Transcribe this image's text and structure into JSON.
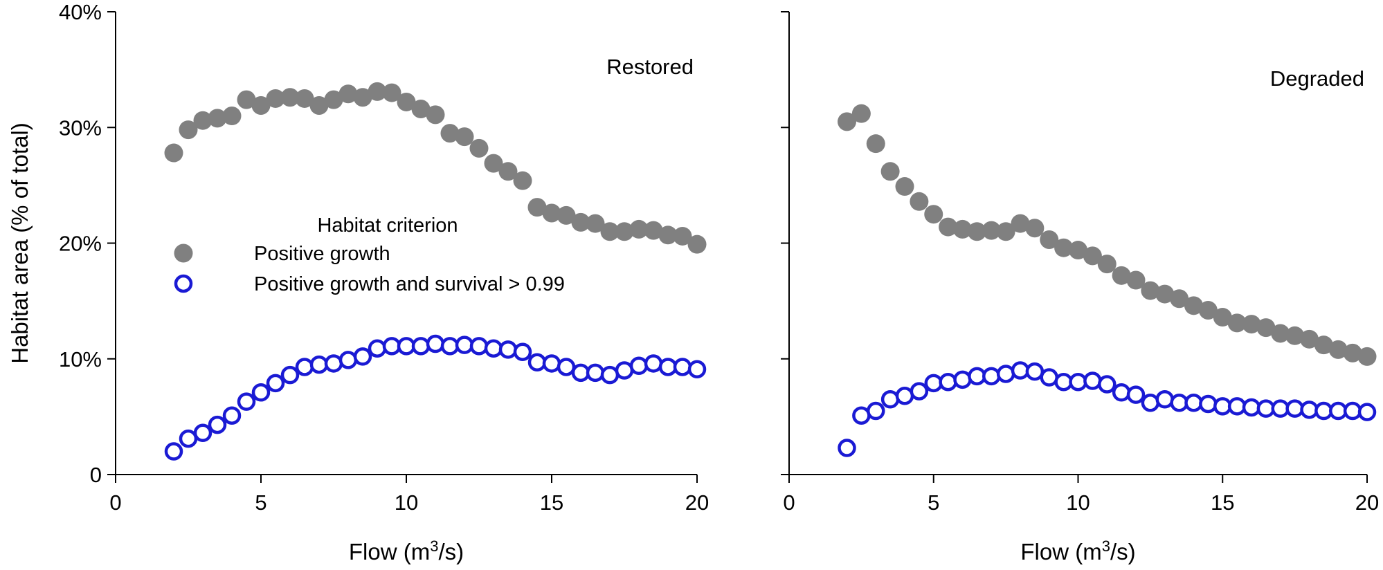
{
  "chart_data": [
    {
      "type": "scatter",
      "panel_label": "Restored",
      "xlabel_prefix": "Flow (m",
      "xlabel_sup": "3",
      "xlabel_suffix": "/s)",
      "ylabel": "Habitat area (% of total)",
      "xlim": [
        0,
        20
      ],
      "ylim": [
        0,
        40
      ],
      "x_ticks": [
        0,
        5,
        10,
        15,
        20
      ],
      "x_tick_labels": [
        "0",
        "5",
        "10",
        "15",
        "20"
      ],
      "y_ticks": [
        0,
        10,
        20,
        30,
        40
      ],
      "y_tick_labels": [
        "0",
        "10%",
        "20%",
        "30%",
        "40%"
      ],
      "legend": {
        "title": "Habitat criterion",
        "entries": [
          "Positive growth",
          "Positive growth and survival > 0.99"
        ]
      },
      "series": [
        {
          "name": "Positive growth",
          "marker": "filled-circle",
          "color": "#808080",
          "x": [
            2,
            2.5,
            3,
            3.5,
            4,
            4.5,
            5,
            5.5,
            6,
            6.5,
            7,
            7.5,
            8,
            8.5,
            9,
            9.5,
            10,
            10.5,
            11,
            11.5,
            12,
            12.5,
            13,
            13.5,
            14,
            14.5,
            15,
            15.5,
            16,
            16.5,
            17,
            17.5,
            18,
            18.5,
            19,
            19.5,
            20
          ],
          "y": [
            27.8,
            29.8,
            30.6,
            30.8,
            31.0,
            32.4,
            31.9,
            32.5,
            32.6,
            32.5,
            31.9,
            32.4,
            32.9,
            32.6,
            33.1,
            33.0,
            32.2,
            31.6,
            31.1,
            29.5,
            29.2,
            28.2,
            26.9,
            26.2,
            25.4,
            23.1,
            22.6,
            22.4,
            21.8,
            21.7,
            21.0,
            21.0,
            21.2,
            21.1,
            20.7,
            20.6,
            19.9
          ]
        },
        {
          "name": "Positive growth and survival > 0.99",
          "marker": "open-circle",
          "color": "#1a1ad4",
          "x": [
            2,
            2.5,
            3,
            3.5,
            4,
            4.5,
            5,
            5.5,
            6,
            6.5,
            7,
            7.5,
            8,
            8.5,
            9,
            9.5,
            10,
            10.5,
            11,
            11.5,
            12,
            12.5,
            13,
            13.5,
            14,
            14.5,
            15,
            15.5,
            16,
            16.5,
            17,
            17.5,
            18,
            18.5,
            19,
            19.5,
            20
          ],
          "y": [
            2.0,
            3.1,
            3.6,
            4.3,
            5.1,
            6.3,
            7.1,
            7.9,
            8.6,
            9.3,
            9.5,
            9.6,
            9.9,
            10.2,
            10.9,
            11.1,
            11.1,
            11.1,
            11.3,
            11.1,
            11.2,
            11.1,
            10.9,
            10.8,
            10.6,
            9.7,
            9.6,
            9.3,
            8.8,
            8.8,
            8.6,
            9.0,
            9.4,
            9.6,
            9.3,
            9.3,
            9.1
          ]
        }
      ]
    },
    {
      "type": "scatter",
      "panel_label": "Degraded",
      "xlabel_prefix": "Flow (m",
      "xlabel_sup": "3",
      "xlabel_suffix": "/s)",
      "ylabel": "",
      "xlim": [
        0,
        20
      ],
      "ylim": [
        0,
        40
      ],
      "x_ticks": [
        0,
        5,
        10,
        15,
        20
      ],
      "x_tick_labels": [
        "0",
        "5",
        "10",
        "15",
        "20"
      ],
      "y_ticks": [
        0,
        10,
        20,
        30,
        40
      ],
      "y_tick_labels": [],
      "series": [
        {
          "name": "Positive growth",
          "marker": "filled-circle",
          "color": "#808080",
          "x": [
            2,
            2.5,
            3,
            3.5,
            4,
            4.5,
            5,
            5.5,
            6,
            6.5,
            7,
            7.5,
            8,
            8.5,
            9,
            9.5,
            10,
            10.5,
            11,
            11.5,
            12,
            12.5,
            13,
            13.5,
            14,
            14.5,
            15,
            15.5,
            16,
            16.5,
            17,
            17.5,
            18,
            18.5,
            19,
            19.5,
            20
          ],
          "y": [
            30.5,
            31.2,
            28.6,
            26.2,
            24.9,
            23.6,
            22.5,
            21.4,
            21.2,
            21.0,
            21.1,
            21.0,
            21.7,
            21.3,
            20.3,
            19.6,
            19.4,
            18.9,
            18.2,
            17.2,
            16.8,
            15.9,
            15.6,
            15.2,
            14.6,
            14.2,
            13.6,
            13.1,
            13.0,
            12.7,
            12.2,
            12.0,
            11.7,
            11.2,
            10.8,
            10.5,
            10.2
          ]
        },
        {
          "name": "Positive growth and survival > 0.99",
          "marker": "open-circle",
          "color": "#1a1ad4",
          "x": [
            2,
            2.5,
            3,
            3.5,
            4,
            4.5,
            5,
            5.5,
            6,
            6.5,
            7,
            7.5,
            8,
            8.5,
            9,
            9.5,
            10,
            10.5,
            11,
            11.5,
            12,
            12.5,
            13,
            13.5,
            14,
            14.5,
            15,
            15.5,
            16,
            16.5,
            17,
            17.5,
            18,
            18.5,
            19,
            19.5,
            20
          ],
          "y": [
            2.3,
            5.1,
            5.5,
            6.5,
            6.8,
            7.2,
            7.9,
            8.0,
            8.2,
            8.5,
            8.5,
            8.7,
            9.0,
            8.9,
            8.4,
            8.0,
            8.0,
            8.1,
            7.8,
            7.1,
            6.9,
            6.2,
            6.5,
            6.2,
            6.2,
            6.1,
            5.9,
            5.9,
            5.8,
            5.7,
            5.7,
            5.7,
            5.6,
            5.5,
            5.5,
            5.5,
            5.4
          ]
        }
      ]
    }
  ]
}
